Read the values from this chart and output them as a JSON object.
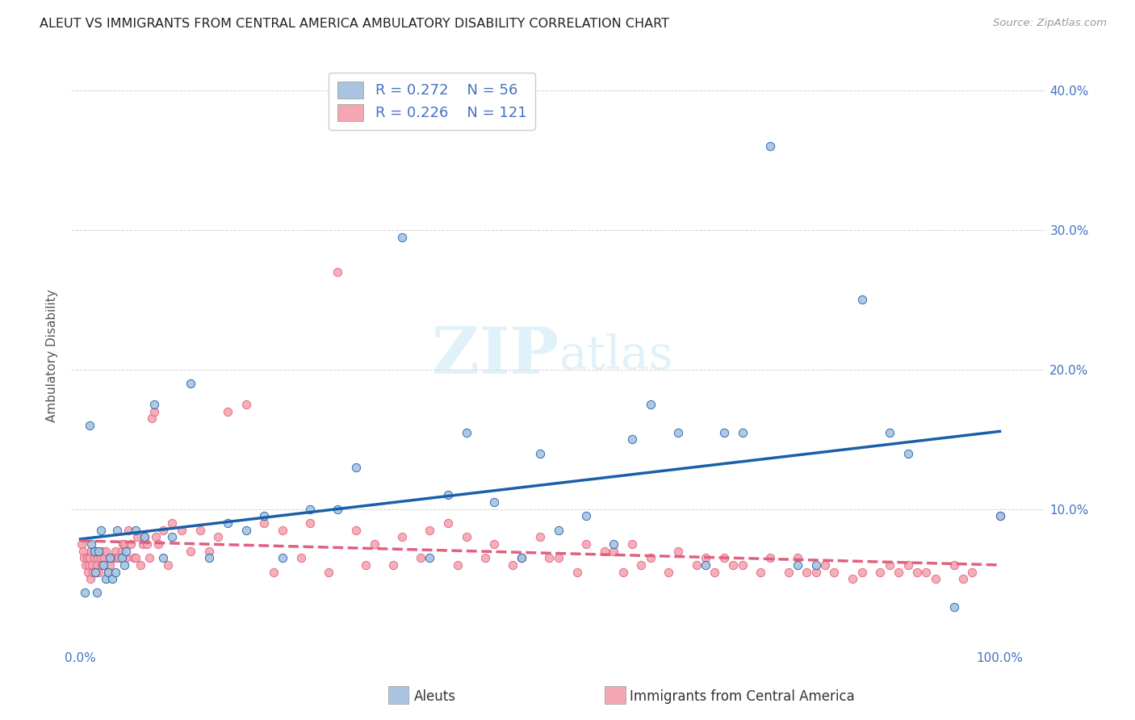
{
  "title": "ALEUT VS IMMIGRANTS FROM CENTRAL AMERICA AMBULATORY DISABILITY CORRELATION CHART",
  "source": "Source: ZipAtlas.com",
  "ylabel": "Ambulatory Disability",
  "xlim": [
    -0.01,
    1.05
  ],
  "ylim": [
    0.0,
    0.42
  ],
  "aleuts_R": "0.272",
  "aleuts_N": "56",
  "immigrants_R": "0.226",
  "immigrants_N": "121",
  "aleut_fill_color": "#a8c4e0",
  "aleut_edge_color": "#1a5fa8",
  "immigrant_fill_color": "#f4a7b2",
  "immigrant_edge_color": "#e06080",
  "aleut_line_color": "#1a5fa8",
  "immigrant_line_color": "#e06080",
  "axis_color": "#4472c4",
  "title_color": "#222222",
  "source_color": "#999999",
  "watermark_color": "#cde8f5",
  "legend_label_1": "Aleuts",
  "legend_label_2": "Immigrants from Central America",
  "aleuts_x": [
    0.005,
    0.01,
    0.012,
    0.015,
    0.016,
    0.018,
    0.02,
    0.022,
    0.025,
    0.028,
    0.03,
    0.032,
    0.035,
    0.038,
    0.04,
    0.045,
    0.048,
    0.05,
    0.06,
    0.07,
    0.08,
    0.09,
    0.1,
    0.12,
    0.14,
    0.16,
    0.18,
    0.2,
    0.22,
    0.25,
    0.28,
    0.3,
    0.35,
    0.38,
    0.4,
    0.42,
    0.45,
    0.48,
    0.5,
    0.52,
    0.55,
    0.58,
    0.6,
    0.62,
    0.65,
    0.68,
    0.7,
    0.72,
    0.75,
    0.78,
    0.8,
    0.85,
    0.88,
    0.9,
    0.95,
    1.0
  ],
  "aleuts_y": [
    0.04,
    0.16,
    0.075,
    0.07,
    0.055,
    0.04,
    0.07,
    0.085,
    0.06,
    0.05,
    0.055,
    0.065,
    0.05,
    0.055,
    0.085,
    0.065,
    0.06,
    0.07,
    0.085,
    0.08,
    0.175,
    0.065,
    0.08,
    0.19,
    0.065,
    0.09,
    0.085,
    0.095,
    0.065,
    0.1,
    0.1,
    0.13,
    0.295,
    0.065,
    0.11,
    0.155,
    0.105,
    0.065,
    0.14,
    0.085,
    0.095,
    0.075,
    0.15,
    0.175,
    0.155,
    0.06,
    0.155,
    0.155,
    0.36,
    0.06,
    0.06,
    0.25,
    0.155,
    0.14,
    0.03,
    0.095
  ],
  "immigrants_x": [
    0.001,
    0.003,
    0.004,
    0.006,
    0.007,
    0.008,
    0.009,
    0.01,
    0.011,
    0.012,
    0.013,
    0.014,
    0.015,
    0.016,
    0.017,
    0.018,
    0.019,
    0.02,
    0.021,
    0.022,
    0.023,
    0.025,
    0.026,
    0.028,
    0.03,
    0.032,
    0.033,
    0.035,
    0.036,
    0.038,
    0.04,
    0.042,
    0.045,
    0.046,
    0.048,
    0.05,
    0.052,
    0.055,
    0.058,
    0.06,
    0.062,
    0.065,
    0.068,
    0.07,
    0.072,
    0.075,
    0.078,
    0.08,
    0.082,
    0.085,
    0.09,
    0.095,
    0.1,
    0.11,
    0.12,
    0.13,
    0.14,
    0.15,
    0.16,
    0.18,
    0.2,
    0.22,
    0.25,
    0.28,
    0.3,
    0.32,
    0.35,
    0.38,
    0.4,
    0.42,
    0.45,
    0.48,
    0.5,
    0.52,
    0.55,
    0.58,
    0.6,
    0.62,
    0.65,
    0.68,
    0.7,
    0.72,
    0.75,
    0.78,
    0.8,
    0.82,
    0.85,
    0.88,
    0.9,
    0.92,
    0.95,
    0.97,
    1.0,
    0.21,
    0.24,
    0.27,
    0.31,
    0.34,
    0.37,
    0.41,
    0.44,
    0.47,
    0.51,
    0.54,
    0.57,
    0.59,
    0.61,
    0.64,
    0.67,
    0.69,
    0.71,
    0.74,
    0.77,
    0.79,
    0.81,
    0.84,
    0.87,
    0.89,
    0.91,
    0.93,
    0.96
  ],
  "immigrants_y": [
    0.075,
    0.07,
    0.065,
    0.06,
    0.065,
    0.055,
    0.06,
    0.065,
    0.05,
    0.07,
    0.06,
    0.055,
    0.065,
    0.07,
    0.055,
    0.06,
    0.065,
    0.055,
    0.07,
    0.065,
    0.06,
    0.07,
    0.065,
    0.07,
    0.055,
    0.06,
    0.065,
    0.065,
    0.065,
    0.07,
    0.065,
    0.065,
    0.07,
    0.075,
    0.075,
    0.065,
    0.085,
    0.075,
    0.065,
    0.065,
    0.08,
    0.06,
    0.075,
    0.08,
    0.075,
    0.065,
    0.165,
    0.17,
    0.08,
    0.075,
    0.085,
    0.06,
    0.09,
    0.085,
    0.07,
    0.085,
    0.07,
    0.08,
    0.17,
    0.175,
    0.09,
    0.085,
    0.09,
    0.27,
    0.085,
    0.075,
    0.08,
    0.085,
    0.09,
    0.08,
    0.075,
    0.065,
    0.08,
    0.065,
    0.075,
    0.07,
    0.075,
    0.065,
    0.07,
    0.065,
    0.065,
    0.06,
    0.065,
    0.065,
    0.055,
    0.055,
    0.055,
    0.06,
    0.06,
    0.055,
    0.06,
    0.055,
    0.095,
    0.055,
    0.065,
    0.055,
    0.06,
    0.06,
    0.065,
    0.06,
    0.065,
    0.06,
    0.065,
    0.055,
    0.07,
    0.055,
    0.06,
    0.055,
    0.06,
    0.055,
    0.06,
    0.055,
    0.055,
    0.055,
    0.06,
    0.05,
    0.055,
    0.055,
    0.055,
    0.05,
    0.05
  ]
}
